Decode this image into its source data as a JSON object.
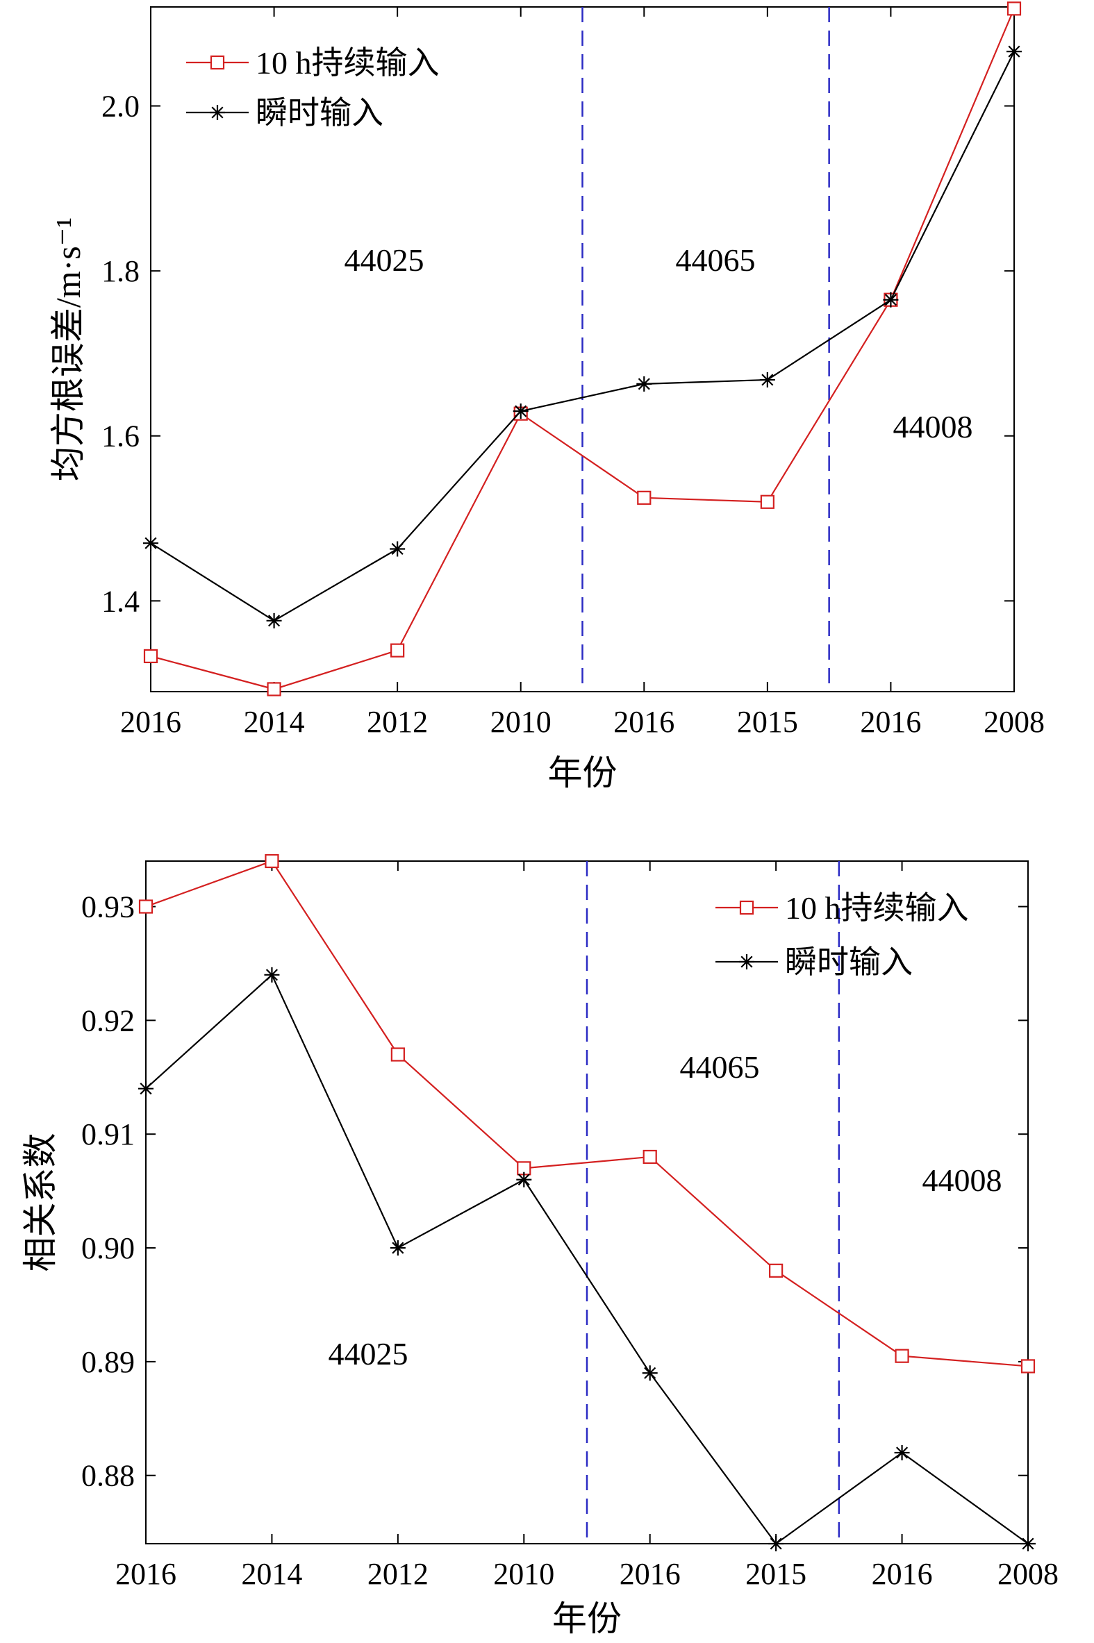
{
  "chart_data": [
    {
      "type": "line",
      "xlabel": "年份",
      "ylabel": "均方根误差/m·s⁻¹",
      "categories": [
        "2016",
        "2014",
        "2012",
        "2010",
        "2016",
        "2015",
        "2016",
        "2008"
      ],
      "ylim": [
        1.29,
        2.12
      ],
      "yticks": [
        "1.4",
        "1.6",
        "1.8",
        "2.0"
      ],
      "series": [
        {
          "name": "10 h持续输入",
          "color": "#d42020",
          "marker": "square",
          "values": [
            1.333,
            1.293,
            1.34,
            1.627,
            1.525,
            1.52,
            1.765,
            2.118
          ]
        },
        {
          "name": "瞬时输入",
          "color": "#000000",
          "marker": "star",
          "values": [
            1.47,
            1.376,
            1.463,
            1.63,
            1.663,
            1.668,
            1.765,
            2.066
          ]
        }
      ],
      "separators": [
        {
          "after_index": 3
        },
        {
          "after_index": 5
        }
      ],
      "separator_color": "#2b2bc4",
      "regions": [
        "44025",
        "44065",
        "44008"
      ],
      "legend_position": "top-left",
      "grid": false
    },
    {
      "type": "line",
      "xlabel": "年份",
      "ylabel": "相关系数",
      "categories": [
        "2016",
        "2014",
        "2012",
        "2010",
        "2016",
        "2015",
        "2016",
        "2008"
      ],
      "ylim": [
        0.874,
        0.934
      ],
      "yticks": [
        "0.88",
        "0.89",
        "0.90",
        "0.91",
        "0.92",
        "0.93"
      ],
      "series": [
        {
          "name": "10 h持续输入",
          "color": "#d42020",
          "marker": "square",
          "values": [
            0.93,
            0.934,
            0.917,
            0.907,
            0.908,
            0.898,
            0.8905,
            0.8896
          ]
        },
        {
          "name": "瞬时输入",
          "color": "#000000",
          "marker": "star",
          "values": [
            0.914,
            0.924,
            0.9,
            0.906,
            0.889,
            0.874,
            0.882,
            0.874
          ]
        }
      ],
      "separators": [
        {
          "after_index": 3
        },
        {
          "after_index": 5
        }
      ],
      "separator_color": "#2b2bc4",
      "regions": [
        "44025",
        "44065",
        "44008"
      ],
      "legend_position": "top-right",
      "grid": false
    }
  ]
}
